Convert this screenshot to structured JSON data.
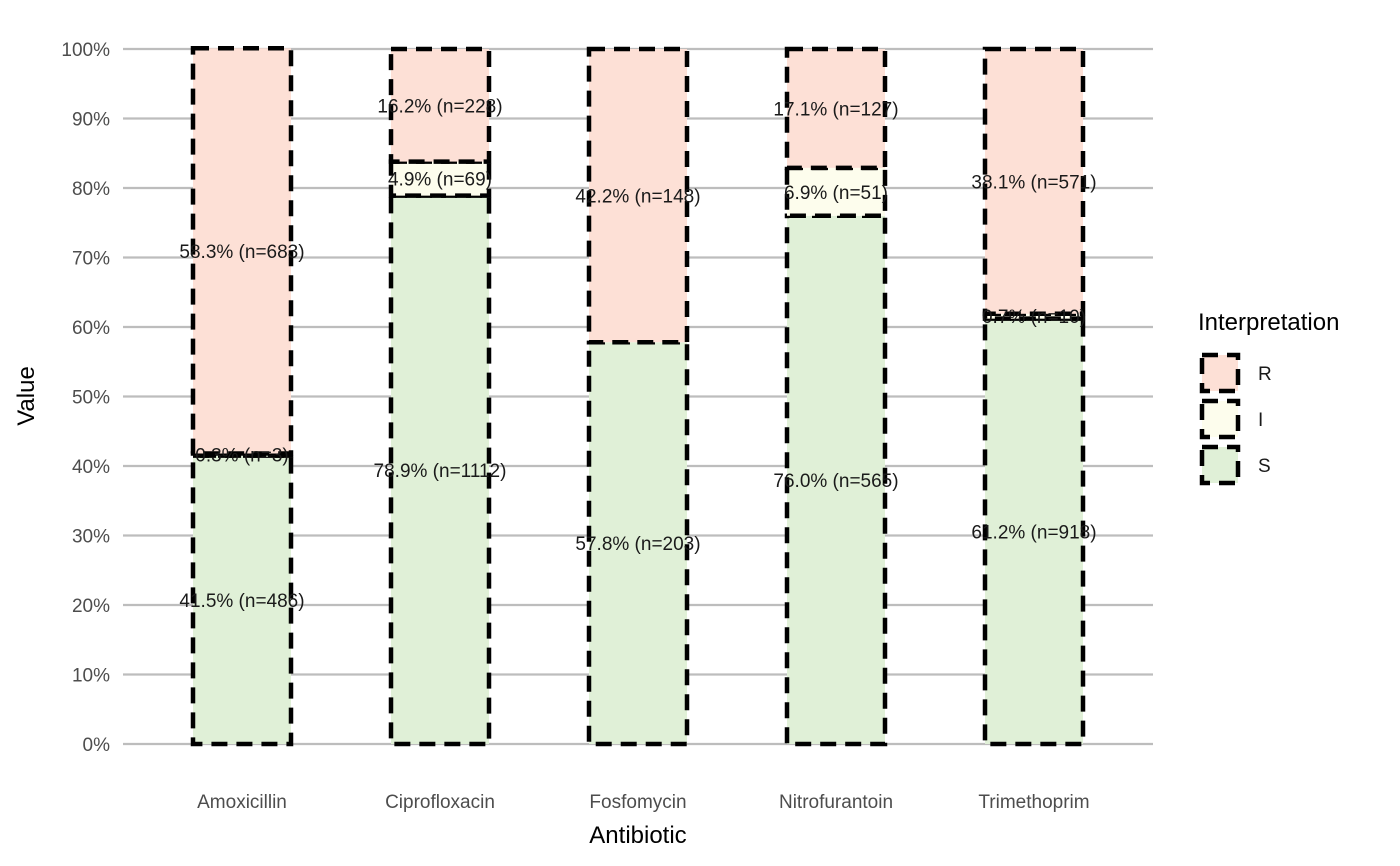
{
  "chart_data": {
    "type": "bar",
    "stacked": true,
    "categories": [
      "Amoxicillin",
      "Ciprofloxacin",
      "Fosfomycin",
      "Nitrofurantoin",
      "Trimethoprim"
    ],
    "series": [
      {
        "name": "S",
        "color": "#e0f0d7",
        "values": [
          41.5,
          78.9,
          57.8,
          76.0,
          61.2
        ],
        "labels": [
          "41.5% (n=486)",
          "78.9% (n=1112)",
          "57.8% (n=203)",
          "76.0% (n=565)",
          "61.2% (n=918)"
        ]
      },
      {
        "name": "I",
        "color": "#fdfded",
        "values": [
          0.3,
          4.9,
          0.0,
          6.9,
          0.7
        ],
        "labels": [
          "0.3% (n=3)",
          "4.9% (n=69)",
          "",
          "6.9% (n=51)",
          "0.7% (n=10)"
        ]
      },
      {
        "name": "R",
        "color": "#fde0d6",
        "values": [
          58.3,
          16.2,
          42.2,
          17.1,
          38.1
        ],
        "labels": [
          "58.3% (n=683)",
          "16.2% (n=228)",
          "42.2% (n=148)",
          "17.1% (n=127)",
          "38.1% (n=571)"
        ]
      }
    ],
    "xlabel": "Antibiotic",
    "ylabel": "Value",
    "ylim": [
      0,
      100
    ],
    "yticks": [
      "0%",
      "10%",
      "20%",
      "30%",
      "40%",
      "50%",
      "60%",
      "70%",
      "80%",
      "90%",
      "100%"
    ],
    "grid": "horizontal",
    "bar_outline": "dashed-black",
    "legend": {
      "title": "Interpretation",
      "position": "right",
      "items": [
        "R",
        "I",
        "S"
      ]
    }
  }
}
